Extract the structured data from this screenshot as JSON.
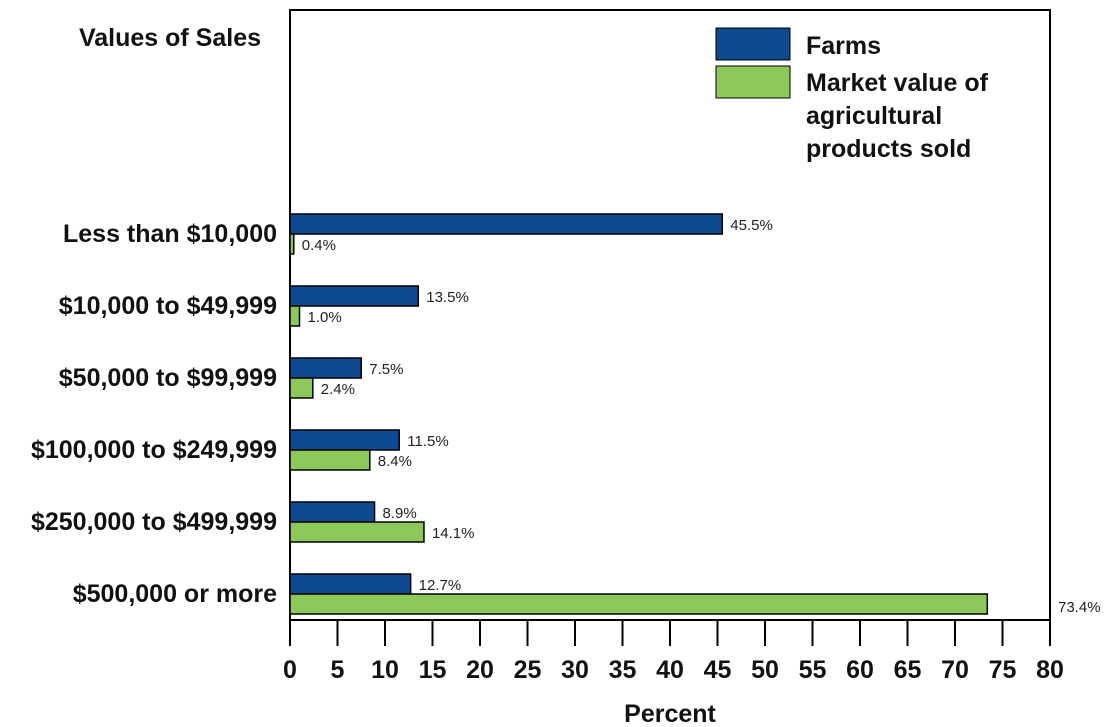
{
  "chart_data": {
    "type": "bar",
    "orientation": "horizontal",
    "title": "Values of Sales",
    "xlabel": "Percent",
    "ylabel": "",
    "xlim": [
      0,
      80
    ],
    "xticks": [
      "0",
      "5",
      "10",
      "15",
      "20",
      "25",
      "30",
      "35",
      "40",
      "45",
      "50",
      "55",
      "60",
      "65",
      "70",
      "75",
      "80"
    ],
    "categories": [
      "Less than $10,000",
      "$10,000 to $49,999",
      "$50,000 to $99,999",
      "$100,000 to $249,999",
      "$250,000 to $499,999",
      "$500,000 or more"
    ],
    "series": [
      {
        "name": "Farms",
        "color": "#0d4a91",
        "values": [
          45.5,
          13.5,
          7.5,
          11.5,
          8.9,
          12.7
        ],
        "labels": [
          "45.5%",
          "13.5%",
          "7.5%",
          "11.5%",
          "8.9%",
          "12.7%"
        ]
      },
      {
        "name": "Market value of agricultural products sold",
        "legend_lines": [
          "Market value of",
          "agricultural",
          "products sold"
        ],
        "color": "#8cc95a",
        "values": [
          0.4,
          1.0,
          2.4,
          8.4,
          14.1,
          73.4
        ],
        "labels": [
          "0.4%",
          "1.0%",
          "2.4%",
          "8.4%",
          "14.1%",
          "73.4%"
        ]
      }
    ],
    "grid": false,
    "legend_position": "top-right"
  }
}
